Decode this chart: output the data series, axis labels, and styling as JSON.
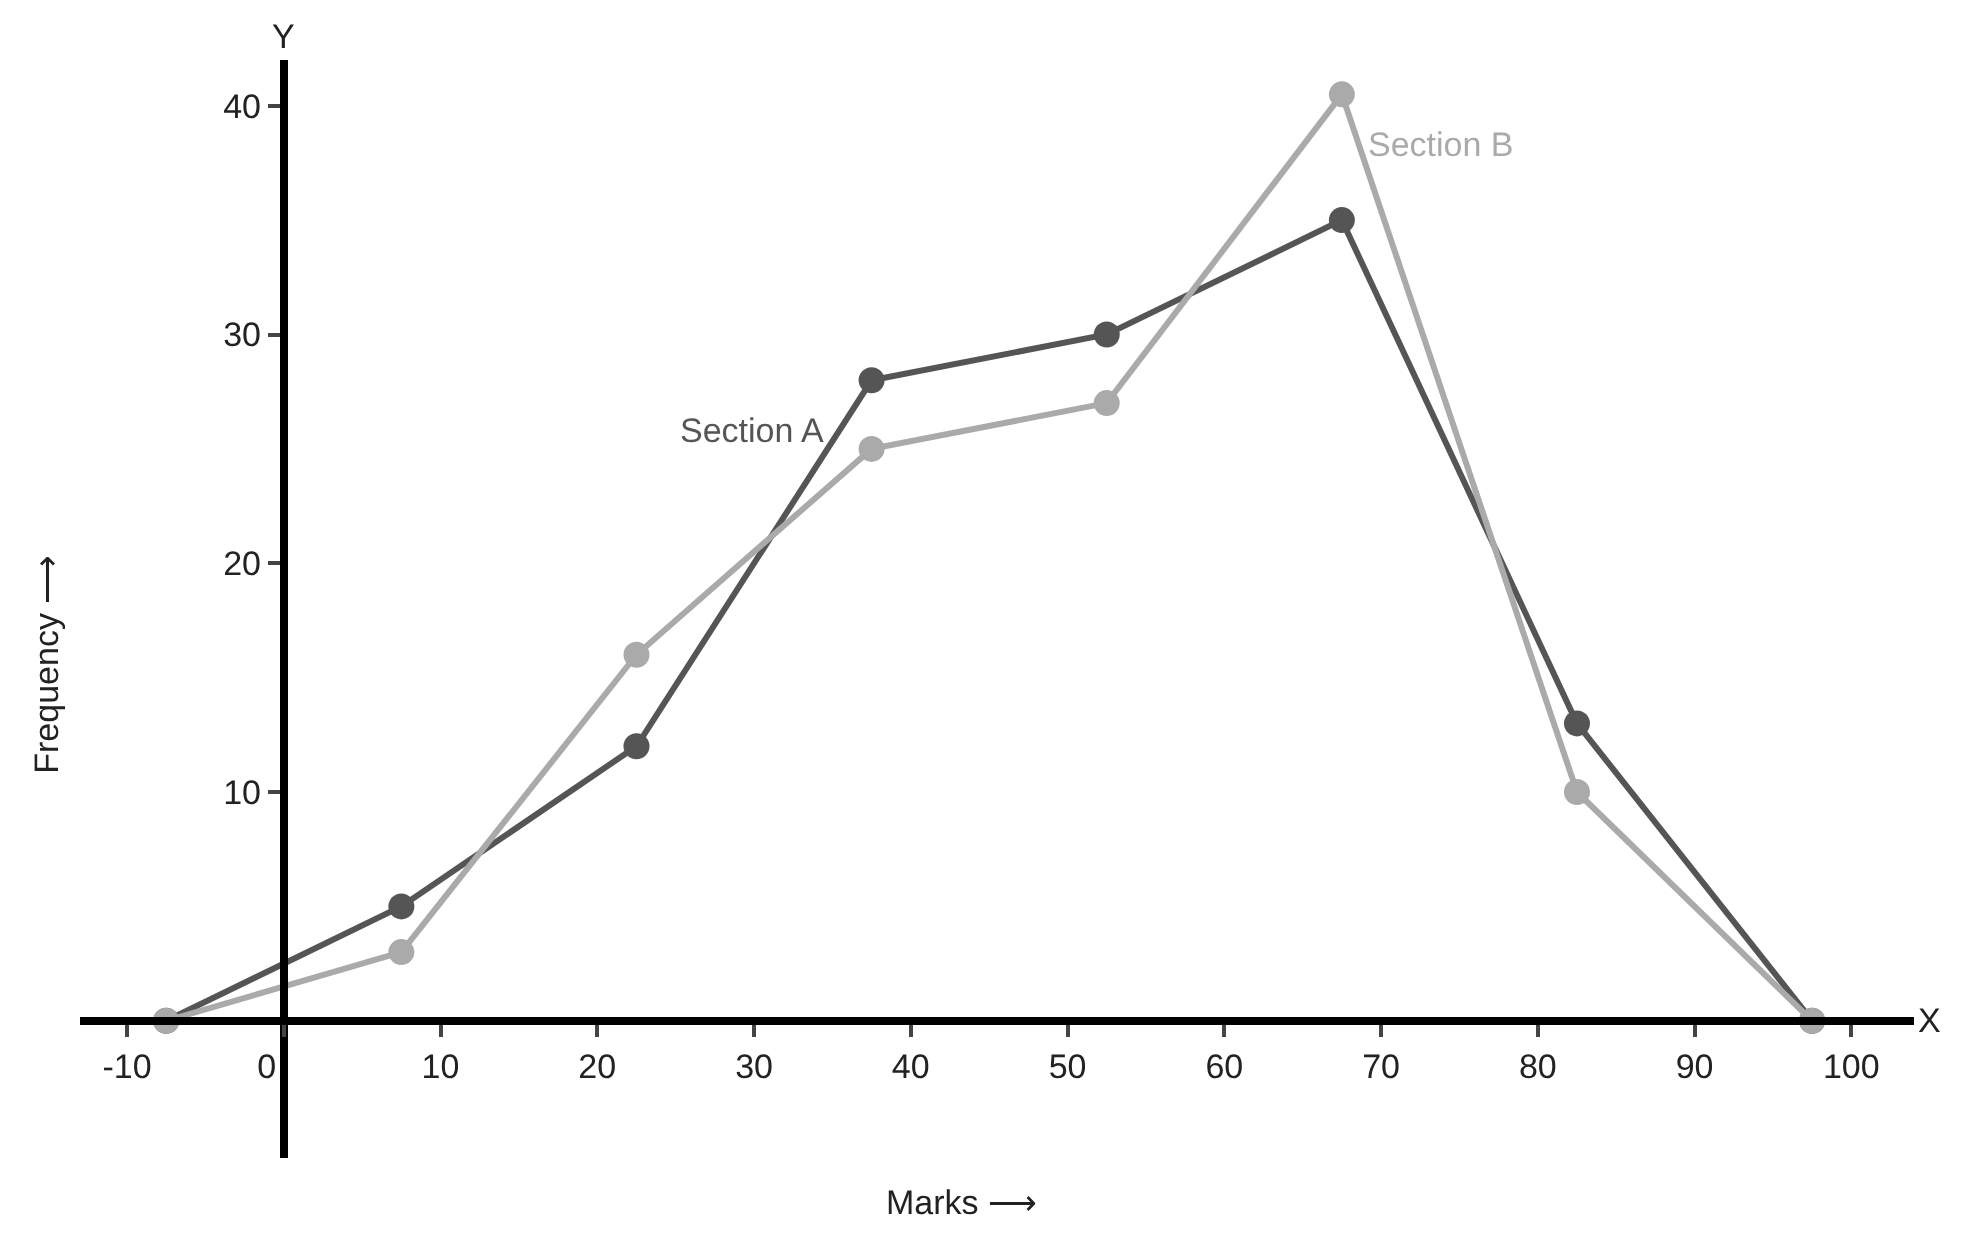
{
  "chart_data": {
    "type": "line",
    "xlabel": "Marks ⟶",
    "ylabel": "Frequency ⟶",
    "x": [
      -7.5,
      7.5,
      22.5,
      37.5,
      52.5,
      67.5,
      82.5,
      97.5
    ],
    "series": [
      {
        "name": "Section A",
        "color": "#555555",
        "values": [
          0,
          5,
          12,
          28,
          30,
          35,
          13,
          0
        ]
      },
      {
        "name": "Section B",
        "color": "#aaaaaa",
        "values": [
          0,
          3,
          16,
          25,
          27,
          40.5,
          10,
          0
        ]
      }
    ],
    "xlim": [
      -13,
      104
    ],
    "ylim": [
      -6,
      42
    ],
    "xticks": [
      -10,
      0,
      10,
      20,
      30,
      40,
      50,
      60,
      70,
      80,
      90,
      100
    ],
    "yticks": [
      10,
      20,
      30,
      40
    ],
    "annotations": [
      "X",
      "Y"
    ],
    "marker": "circle",
    "legend": false
  }
}
